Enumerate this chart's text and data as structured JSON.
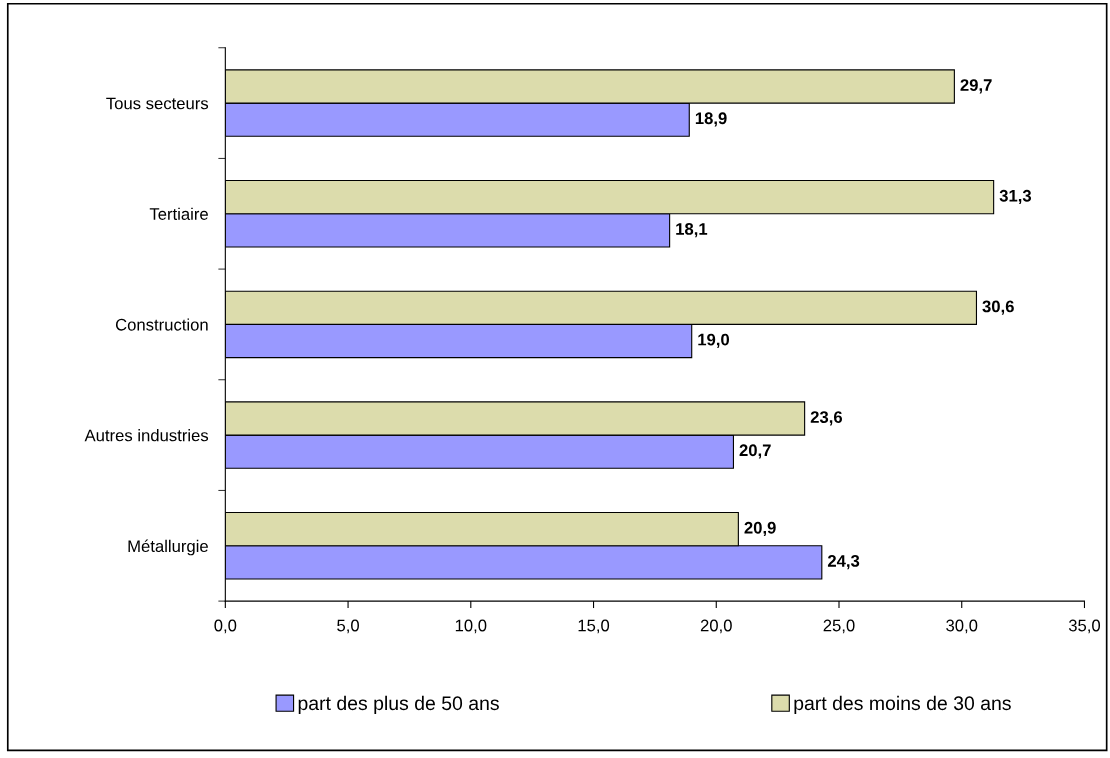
{
  "chart_data": {
    "type": "bar",
    "orientation": "horizontal",
    "categories": [
      "Tous secteurs",
      "Tertiaire",
      "Construction",
      "Autres industries",
      "Métallurgie"
    ],
    "series": [
      {
        "name": "part des plus de 50 ans",
        "color": "#9999ff",
        "values": [
          18.9,
          18.1,
          19.0,
          20.7,
          24.3
        ],
        "value_labels": [
          "18,9",
          "18,1",
          "19,0",
          "20,7",
          "24,3"
        ]
      },
      {
        "name": "part des moins de 30 ans",
        "color": "#dcdcac",
        "values": [
          29.7,
          31.3,
          30.6,
          23.6,
          20.9
        ],
        "value_labels": [
          "29,7",
          "31,3",
          "30,6",
          "23,6",
          "20,9"
        ]
      }
    ],
    "xlim": [
      0,
      35
    ],
    "xticks": [
      {
        "value": 0,
        "label": "0,0"
      },
      {
        "value": 5,
        "label": "5,0"
      },
      {
        "value": 10,
        "label": "10,0"
      },
      {
        "value": 15,
        "label": "15,0"
      },
      {
        "value": 20,
        "label": "20,0"
      },
      {
        "value": 25,
        "label": "25,0"
      },
      {
        "value": 30,
        "label": "30,0"
      },
      {
        "value": 35,
        "label": "35,0"
      }
    ],
    "grid": false,
    "legend": "bottom"
  }
}
